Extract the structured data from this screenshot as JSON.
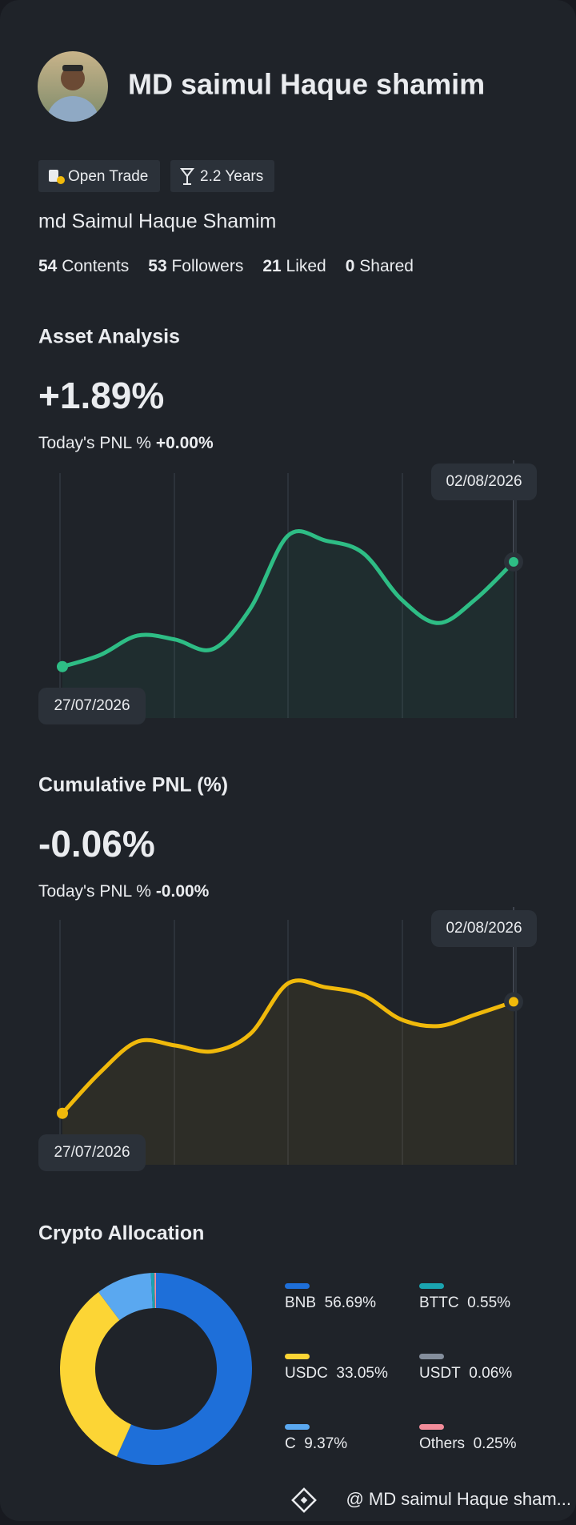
{
  "profile": {
    "name": "MD saimul Haque shamim",
    "tags": [
      "Open Trade",
      "2.2 Years"
    ],
    "handle": "md Saimul Haque Shamim",
    "stats": [
      {
        "count": 54,
        "label": "Contents"
      },
      {
        "count": 53,
        "label": "Followers"
      },
      {
        "count": 21,
        "label": "Liked"
      },
      {
        "count": 0,
        "label": "Shared"
      }
    ]
  },
  "asset_analysis": {
    "title": "Asset Analysis",
    "value": "+1.89%",
    "pnl_label": "Today's PNL %",
    "pnl_value": "+0.00%",
    "chart": {
      "type": "line",
      "color": "#2ebd85",
      "ylim": [
        0,
        100
      ],
      "start_date": "27/07/2026",
      "end_date": "02/08/2026",
      "values": [
        11.8,
        18.8,
        30.6,
        28.2,
        22.4,
        47.1,
        91.2,
        88.2,
        80.6,
        52.9,
        38.2,
        52.9,
        75.3
      ]
    }
  },
  "cumulative_pnl": {
    "title": "Cumulative PNL (%)",
    "value": "-0.06%",
    "pnl_label": "Today's PNL %",
    "pnl_value": "-0.00%",
    "chart": {
      "type": "line",
      "color": "#f0b90b",
      "ylim": [
        0,
        100
      ],
      "start_date": "27/07/2026",
      "end_date": "02/08/2026",
      "values": [
        11.8,
        36.5,
        55.3,
        52.9,
        49.4,
        60,
        90.6,
        88.2,
        83.5,
        68.8,
        64.7,
        71.8,
        79.4
      ]
    }
  },
  "crypto_allocation": {
    "title": "Crypto Allocation",
    "chart": {
      "type": "donut",
      "categories": [
        "BNB",
        "USDC",
        "C",
        "BTTC",
        "USDT",
        "Others"
      ],
      "values": [
        56.69,
        33.05,
        9.37,
        0.55,
        0.06,
        0.25
      ],
      "value_labels": [
        "56.69%",
        "33.05%",
        "9.37%",
        "0.55%",
        "0.06%",
        "0.25%"
      ],
      "colors": [
        "#1e6fd9",
        "#fcd535",
        "#5aa8f0",
        "#1aa4b0",
        "#848e9c",
        "#f28c9a"
      ]
    }
  },
  "footer": {
    "text": "@ MD saimul Haque sham..."
  }
}
